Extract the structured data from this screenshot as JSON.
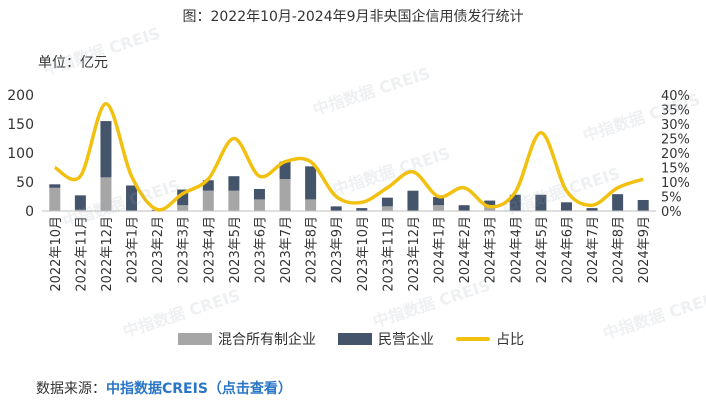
{
  "title": "图：2022年10月-2024年9月非央国企信用债发行统计",
  "unit_label": "单位：亿元",
  "legend": {
    "mixed": "混合所有制企业",
    "private": "民营企业",
    "ratio": "占比"
  },
  "footer": {
    "prefix": "数据来源：",
    "source": "中指数据CREIS（点击查看）"
  },
  "watermark": "中指数据 CREIS",
  "colors": {
    "mixed": "#a6a6a6",
    "private": "#44546a",
    "ratio": "#f2c00f",
    "source_link": "#2a76c6"
  },
  "chart_data": {
    "type": "bar",
    "stacked": true,
    "categories": [
      "2022年10月",
      "2022年11月",
      "2022年12月",
      "2023年1月",
      "2023年2月",
      "2023年3月",
      "2023年4月",
      "2023年5月",
      "2023年6月",
      "2023年7月",
      "2023年8月",
      "2023年9月",
      "2023年10月",
      "2023年11月",
      "2023年12月",
      "2024年1月",
      "2024年2月",
      "2024年3月",
      "2024年4月",
      "2024年5月",
      "2024年6月",
      "2024年7月",
      "2024年8月",
      "2024年9月"
    ],
    "series": [
      {
        "name": "混合所有制企业",
        "type": "bar",
        "axis": "left",
        "values": [
          40,
          2,
          58,
          0,
          0,
          10,
          35,
          35,
          20,
          55,
          20,
          0,
          0,
          8,
          0,
          10,
          0,
          8,
          0,
          0,
          0,
          0,
          0,
          0
        ]
      },
      {
        "name": "民营企业",
        "type": "bar",
        "axis": "left",
        "values": [
          6,
          25,
          97,
          44,
          2,
          27,
          18,
          25,
          18,
          30,
          57,
          8,
          5,
          15,
          35,
          14,
          10,
          10,
          28,
          28,
          15,
          5,
          29,
          19
        ]
      },
      {
        "name": "占比",
        "type": "line",
        "axis": "right",
        "unit": "%",
        "values": [
          15,
          12,
          37,
          12,
          0.5,
          6,
          11,
          25,
          12,
          17,
          17,
          5,
          3,
          8,
          13.5,
          5,
          8,
          1.5,
          6.5,
          27,
          7,
          2,
          8,
          11
        ]
      }
    ],
    "y_left": {
      "min": 0,
      "max": 200,
      "ticks": [
        "0",
        "50",
        "100",
        "150",
        "200"
      ]
    },
    "y_right": {
      "min": 0,
      "max": 40,
      "ticks": [
        "0%",
        "5%",
        "10%",
        "15%",
        "20%",
        "25%",
        "30%",
        "35%",
        "40%"
      ]
    },
    "legend_position": "bottom",
    "grid": false
  }
}
